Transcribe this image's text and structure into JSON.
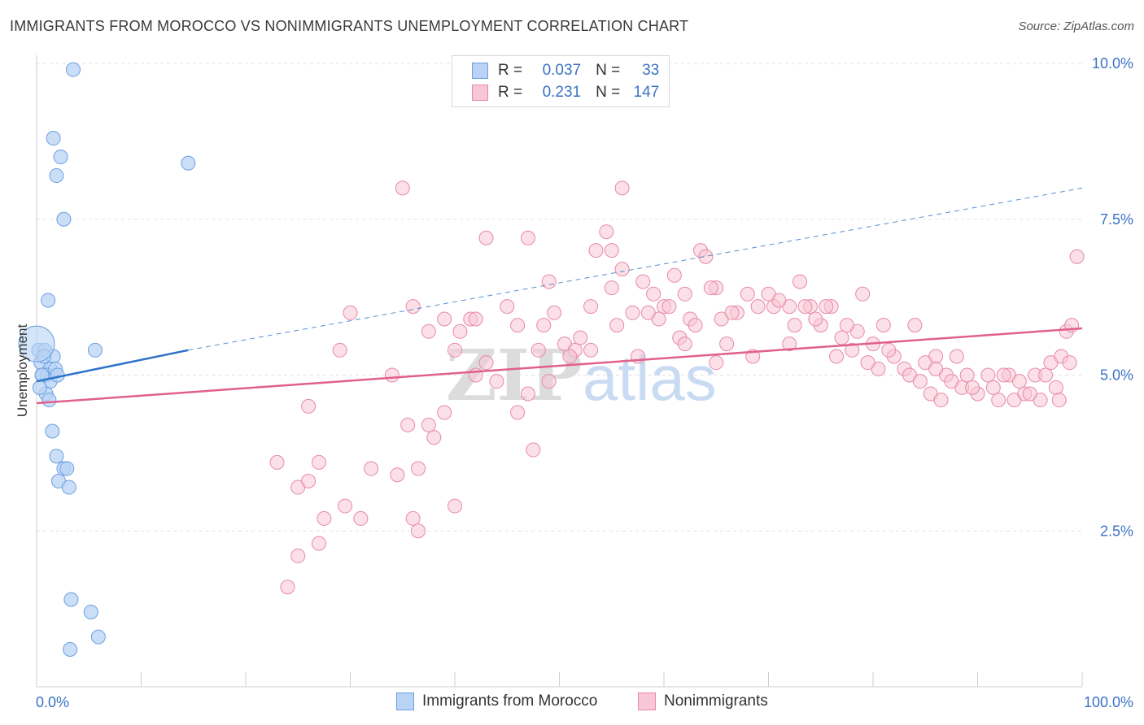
{
  "header": {
    "title": "IMMIGRANTS FROM MOROCCO VS NONIMMIGRANTS UNEMPLOYMENT CORRELATION CHART",
    "source": "Source: ZipAtlas.com"
  },
  "legend": {
    "rows": [
      {
        "r_label": "R =",
        "r_value": "0.037",
        "n_label": "N =",
        "n_value": "33"
      },
      {
        "r_label": "R =",
        "r_value": "0.231",
        "n_label": "N =",
        "n_value": "147"
      }
    ]
  },
  "colors": {
    "morocco_fill": "#b8d3f5",
    "morocco_stroke": "#6a9fe0",
    "morocco_line": "#2f73c9",
    "nonimm_fill": "#f8c6d6",
    "nonimm_stroke": "#e889a8",
    "nonimm_line": "#e0608c",
    "tick_label": "#3b73c4",
    "grid": "#e2e2e2"
  },
  "chart_data": {
    "type": "scatter",
    "title": "IMMIGRANTS FROM MOROCCO VS NONIMMIGRANTS UNEMPLOYMENT CORRELATION CHART",
    "xlabel": "",
    "ylabel": "Unemployment",
    "xlim": [
      0,
      100
    ],
    "ylim": [
      0,
      10
    ],
    "x_tick_labels": [
      "0.0%",
      "100.0%"
    ],
    "y_ticks": [
      2.5,
      5.0,
      7.5,
      10.0
    ],
    "y_tick_labels": [
      "2.5%",
      "5.0%",
      "7.5%",
      "10.0%"
    ],
    "grid": true,
    "legend_position": "top-center",
    "series": [
      {
        "name": "Immigrants from Morocco",
        "points": [
          [
            3.5,
            9.9
          ],
          [
            1.6,
            8.8
          ],
          [
            2.3,
            8.5
          ],
          [
            1.9,
            8.2
          ],
          [
            2.6,
            7.5
          ],
          [
            14.5,
            8.4
          ],
          [
            1.1,
            6.2
          ],
          [
            0.2,
            5.4
          ],
          [
            0.8,
            5.4
          ],
          [
            5.6,
            5.4
          ],
          [
            1.6,
            5.3
          ],
          [
            0.4,
            5.2
          ],
          [
            1.3,
            5.1
          ],
          [
            0.6,
            5.0
          ],
          [
            1.0,
            5.0
          ],
          [
            1.3,
            4.9
          ],
          [
            0.9,
            4.7
          ],
          [
            1.2,
            4.6
          ],
          [
            1.5,
            4.1
          ],
          [
            1.9,
            3.7
          ],
          [
            2.6,
            3.5
          ],
          [
            2.9,
            3.5
          ],
          [
            2.1,
            3.3
          ],
          [
            3.1,
            3.2
          ],
          [
            3.3,
            1.4
          ],
          [
            5.2,
            1.2
          ],
          [
            5.9,
            0.8
          ],
          [
            3.2,
            0.6
          ],
          [
            0.5,
            5.0
          ],
          [
            1.8,
            5.1
          ],
          [
            0.3,
            4.8
          ],
          [
            0.7,
            5.3
          ],
          [
            2.0,
            5.0
          ]
        ],
        "trend": {
          "x0": 0,
          "y0": 4.9,
          "x1": 14.5,
          "y1": 5.4,
          "dashed_to_x": 100,
          "dashed_to_y": 8.0
        }
      },
      {
        "name": "Nonimmigrants",
        "points": [
          [
            35.0,
            8.0
          ],
          [
            56.0,
            8.0
          ],
          [
            43.0,
            7.2
          ],
          [
            47.0,
            7.2
          ],
          [
            54.5,
            7.3
          ],
          [
            53.5,
            7.0
          ],
          [
            55.0,
            7.0
          ],
          [
            63.5,
            7.0
          ],
          [
            64.0,
            6.9
          ],
          [
            56.0,
            6.7
          ],
          [
            61.0,
            6.6
          ],
          [
            49.0,
            6.5
          ],
          [
            55.0,
            6.4
          ],
          [
            58.0,
            6.5
          ],
          [
            59.0,
            6.3
          ],
          [
            62.0,
            6.3
          ],
          [
            65.0,
            6.4
          ],
          [
            68.0,
            6.3
          ],
          [
            73.0,
            6.5
          ],
          [
            79.0,
            6.3
          ],
          [
            36.0,
            6.1
          ],
          [
            45.0,
            6.1
          ],
          [
            49.5,
            6.0
          ],
          [
            53.0,
            6.1
          ],
          [
            57.0,
            6.0
          ],
          [
            60.0,
            6.1
          ],
          [
            67.0,
            6.0
          ],
          [
            69.0,
            6.1
          ],
          [
            70.5,
            6.1
          ],
          [
            72.0,
            6.1
          ],
          [
            74.0,
            6.1
          ],
          [
            76.0,
            6.1
          ],
          [
            30.0,
            6.0
          ],
          [
            39.0,
            5.9
          ],
          [
            41.5,
            5.9
          ],
          [
            42.0,
            5.9
          ],
          [
            46.0,
            5.8
          ],
          [
            48.5,
            5.8
          ],
          [
            55.5,
            5.8
          ],
          [
            59.5,
            5.9
          ],
          [
            62.5,
            5.9
          ],
          [
            63.0,
            5.8
          ],
          [
            65.5,
            5.9
          ],
          [
            72.5,
            5.8
          ],
          [
            75.0,
            5.8
          ],
          [
            78.5,
            5.7
          ],
          [
            81.0,
            5.8
          ],
          [
            84.0,
            5.8
          ],
          [
            37.5,
            5.7
          ],
          [
            40.5,
            5.7
          ],
          [
            50.5,
            5.5
          ],
          [
            51.5,
            5.4
          ],
          [
            53.0,
            5.4
          ],
          [
            61.5,
            5.6
          ],
          [
            72.0,
            5.5
          ],
          [
            76.5,
            5.3
          ],
          [
            78.0,
            5.4
          ],
          [
            80.0,
            5.5
          ],
          [
            82.0,
            5.3
          ],
          [
            86.0,
            5.3
          ],
          [
            88.0,
            5.3
          ],
          [
            98.5,
            5.7
          ],
          [
            99.0,
            5.8
          ],
          [
            99.5,
            6.9
          ],
          [
            29.0,
            5.4
          ],
          [
            40.0,
            5.4
          ],
          [
            48.0,
            5.4
          ],
          [
            51.0,
            5.3
          ],
          [
            57.5,
            5.3
          ],
          [
            65.0,
            5.2
          ],
          [
            80.5,
            5.1
          ],
          [
            83.0,
            5.1
          ],
          [
            85.0,
            5.2
          ],
          [
            87.0,
            5.0
          ],
          [
            89.0,
            5.0
          ],
          [
            91.0,
            5.0
          ],
          [
            93.0,
            5.0
          ],
          [
            95.5,
            5.0
          ],
          [
            97.0,
            5.2
          ],
          [
            98.0,
            5.3
          ],
          [
            34.0,
            5.0
          ],
          [
            44.0,
            4.9
          ],
          [
            47.0,
            4.7
          ],
          [
            49.0,
            4.9
          ],
          [
            85.5,
            4.7
          ],
          [
            86.5,
            4.6
          ],
          [
            88.5,
            4.8
          ],
          [
            90.0,
            4.7
          ],
          [
            92.0,
            4.6
          ],
          [
            93.5,
            4.6
          ],
          [
            94.5,
            4.7
          ],
          [
            96.0,
            4.6
          ],
          [
            97.5,
            4.8
          ],
          [
            26.0,
            4.5
          ],
          [
            35.5,
            4.2
          ],
          [
            37.5,
            4.2
          ],
          [
            39.0,
            4.4
          ],
          [
            46.0,
            4.4
          ],
          [
            38.0,
            4.0
          ],
          [
            47.5,
            3.8
          ],
          [
            27.0,
            3.6
          ],
          [
            32.0,
            3.5
          ],
          [
            34.5,
            3.4
          ],
          [
            36.5,
            3.5
          ],
          [
            25.0,
            3.2
          ],
          [
            23.0,
            3.6
          ],
          [
            26.0,
            3.3
          ],
          [
            29.5,
            2.9
          ],
          [
            40.0,
            2.9
          ],
          [
            36.0,
            2.7
          ],
          [
            27.5,
            2.7
          ],
          [
            36.5,
            2.5
          ],
          [
            27.0,
            2.3
          ],
          [
            25.0,
            2.1
          ],
          [
            24.0,
            1.6
          ],
          [
            31.0,
            2.7
          ],
          [
            42.0,
            5.0
          ],
          [
            43.0,
            5.2
          ],
          [
            52.0,
            5.6
          ],
          [
            58.5,
            6.0
          ],
          [
            66.0,
            5.5
          ],
          [
            68.5,
            5.3
          ],
          [
            71.0,
            6.2
          ],
          [
            74.5,
            5.9
          ],
          [
            77.0,
            5.6
          ],
          [
            79.5,
            5.2
          ],
          [
            81.5,
            5.4
          ],
          [
            83.5,
            5.0
          ],
          [
            84.5,
            4.9
          ],
          [
            86.0,
            5.1
          ],
          [
            87.5,
            4.9
          ],
          [
            89.5,
            4.8
          ],
          [
            91.5,
            4.8
          ],
          [
            92.5,
            5.0
          ],
          [
            94.0,
            4.9
          ],
          [
            95.0,
            4.7
          ],
          [
            96.5,
            5.0
          ],
          [
            97.8,
            4.6
          ],
          [
            98.8,
            5.2
          ],
          [
            64.5,
            6.4
          ],
          [
            66.5,
            6.0
          ],
          [
            70.0,
            6.3
          ],
          [
            73.5,
            6.1
          ],
          [
            75.5,
            6.1
          ],
          [
            77.5,
            5.8
          ],
          [
            62.0,
            5.5
          ],
          [
            60.5,
            6.1
          ]
        ],
        "trend": {
          "x0": 0,
          "y0": 4.55,
          "x1": 100,
          "y1": 5.75
        }
      }
    ]
  }
}
